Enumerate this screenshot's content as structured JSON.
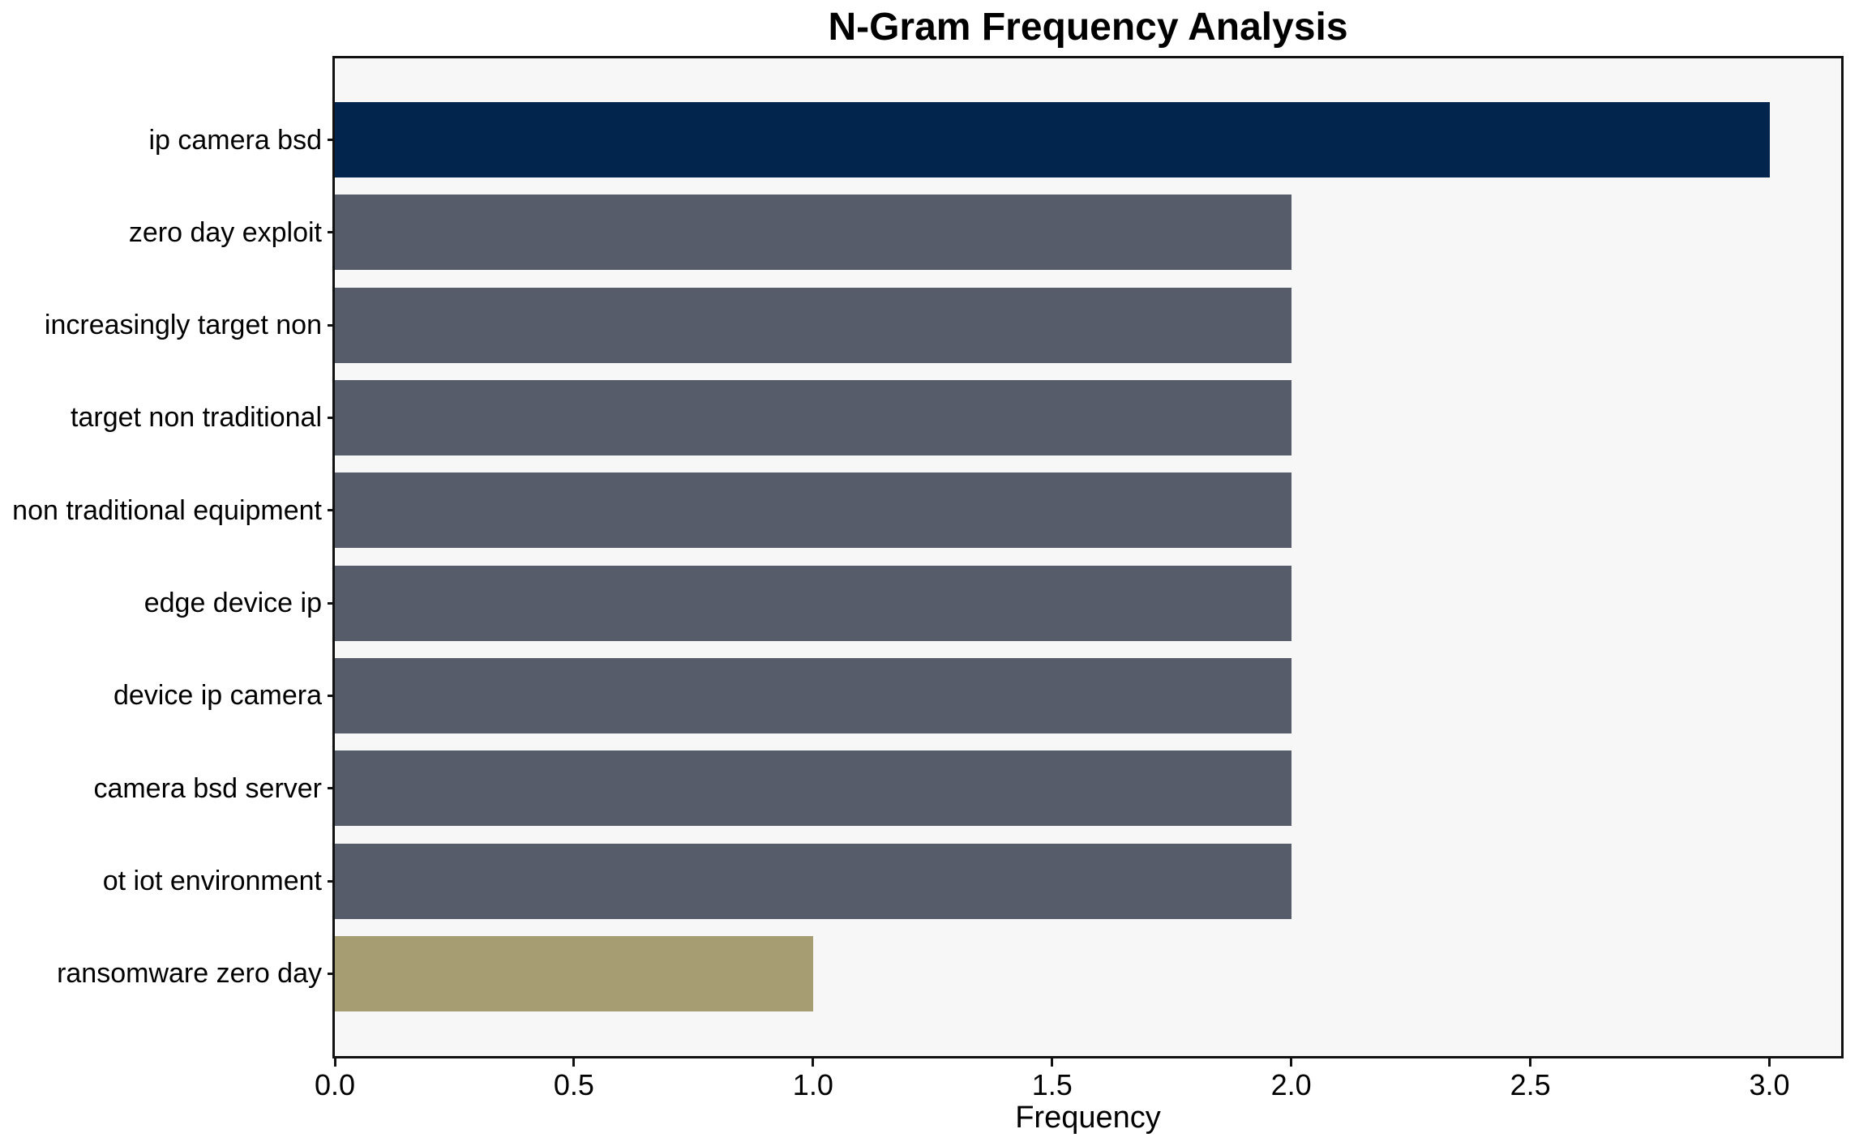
{
  "chart_data": {
    "type": "bar",
    "orientation": "horizontal",
    "title": "N-Gram Frequency Analysis",
    "xlabel": "Frequency",
    "ylabel": "",
    "categories": [
      "ip camera bsd",
      "zero day exploit",
      "increasingly target non",
      "target non traditional",
      "non traditional equipment",
      "edge device ip",
      "device ip camera",
      "camera bsd server",
      "ot iot environment",
      "ransomware zero day"
    ],
    "values": [
      3,
      2,
      2,
      2,
      2,
      2,
      2,
      2,
      2,
      1
    ],
    "bar_colors": [
      "#02254E",
      "#565C6A",
      "#565C6A",
      "#565C6A",
      "#565C6A",
      "#565C6A",
      "#565C6A",
      "#565C6A",
      "#565C6A",
      "#A69D72"
    ],
    "xlim": [
      0,
      3.15
    ],
    "xticks": [
      0,
      0.5,
      1,
      1.5,
      2,
      2.5,
      3
    ],
    "xtick_labels": [
      "0.0",
      "0.5",
      "1.0",
      "1.5",
      "2.0",
      "2.5",
      "3.0"
    ],
    "grid": false,
    "legend_position": "none",
    "colors": {
      "accent_navy": "#02254E",
      "neutral_slate": "#565C6A",
      "highlight_khaki": "#A69D72",
      "plot_background": "#F7F7F8",
      "figure_background": "#FFFFFF",
      "spine": "#111111",
      "text": "#000000"
    }
  }
}
